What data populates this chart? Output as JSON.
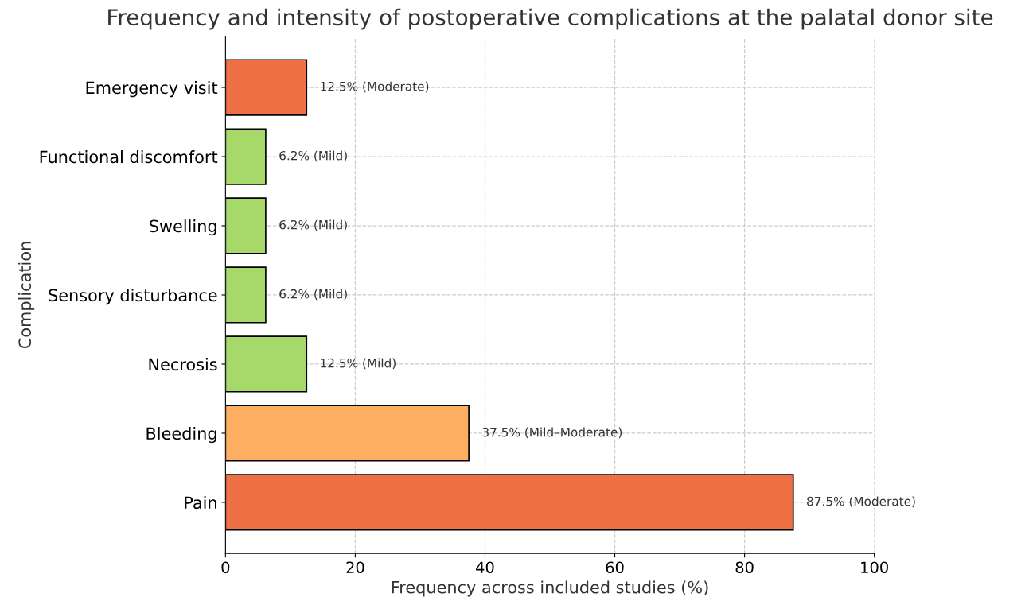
{
  "chart_data": {
    "type": "bar",
    "orientation": "horizontal",
    "title": "Frequency and intensity of postoperative complications at the palatal donor site",
    "xlabel": "Frequency across included studies (%)",
    "ylabel": "Complication",
    "categories": [
      "Emergency visit",
      "Functional discomfort",
      "Swelling",
      "Sensory disturbance",
      "Necrosis",
      "Bleeding",
      "Pain"
    ],
    "values": [
      12.5,
      6.2,
      6.2,
      6.2,
      12.5,
      37.5,
      87.5
    ],
    "colors": [
      "#f07046",
      "#a6d96a",
      "#a6d96a",
      "#a6d96a",
      "#a6d96a",
      "#fdae61",
      "#f07046"
    ],
    "value_labels": [
      "12.5% (Moderate)",
      "6.2% (Mild)",
      "6.2% (Mild)",
      "6.2% (Mild)",
      "12.5% (Mild)",
      "37.5% (Mild–Moderate)",
      "87.5% (Moderate)"
    ],
    "xlim": [
      0,
      100
    ],
    "xticks": [
      0,
      20,
      40,
      60,
      80,
      100
    ],
    "grid": true,
    "line_style": "dashed"
  }
}
